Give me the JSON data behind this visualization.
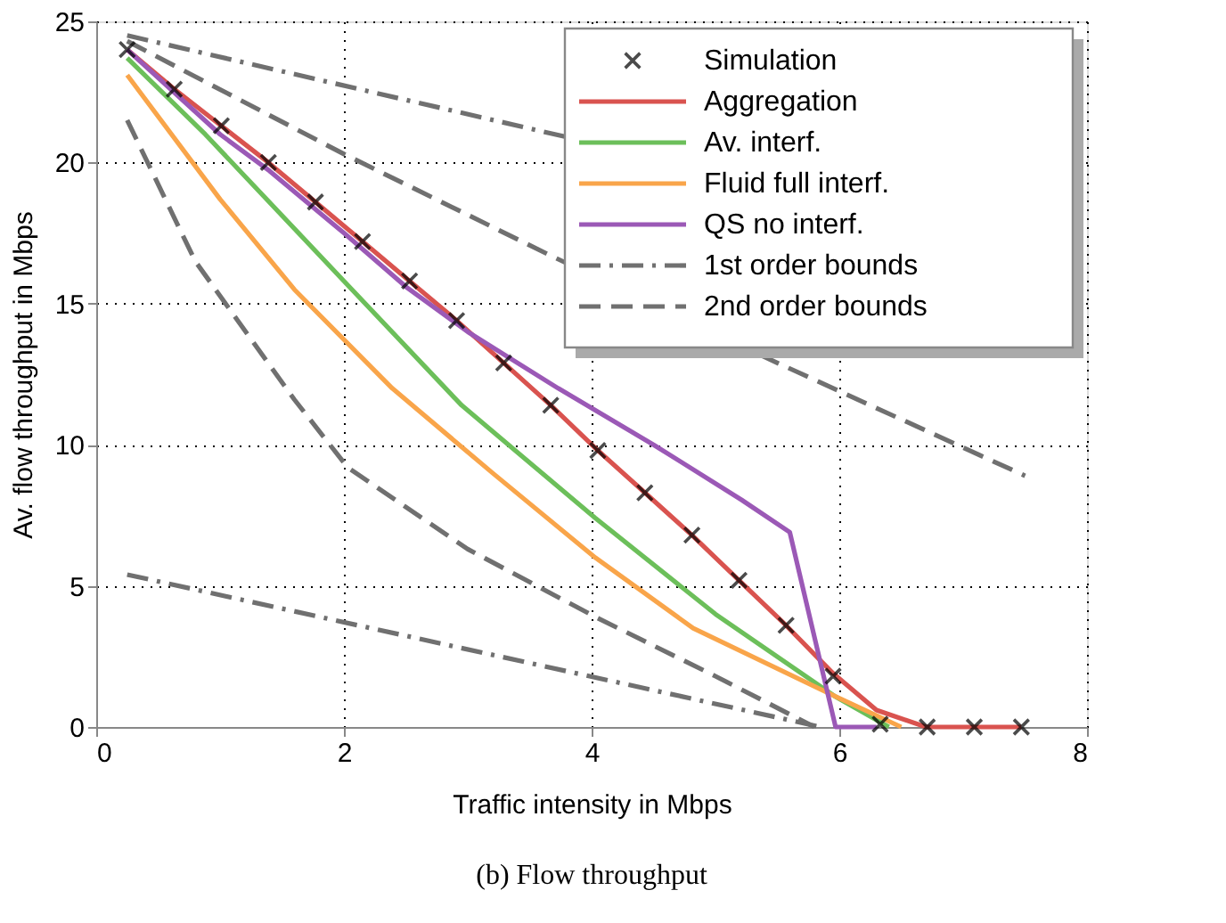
{
  "chart_data": {
    "type": "line",
    "xlabel": "Traffic intensity in Mbps",
    "ylabel": "Av. flow throughput in Mbps",
    "annotations": [
      "(b) Flow throughput"
    ],
    "xlim": [
      0,
      8
    ],
    "ylim": [
      0,
      25
    ],
    "xticks": [
      0,
      2,
      4,
      6,
      8
    ],
    "yticks": [
      0,
      5,
      10,
      15,
      20,
      25
    ],
    "grid": true,
    "legend": "top right",
    "series": [
      {
        "name": "Simulation",
        "type": "scatter",
        "marker": "cross",
        "color": "#000000",
        "x": [
          0.25,
          0.63,
          1.01,
          1.39,
          1.77,
          2.15,
          2.53,
          2.91,
          3.29,
          3.67,
          4.05,
          4.43,
          4.81,
          5.19,
          5.57,
          5.95,
          6.33,
          6.71,
          7.09,
          7.47
        ],
        "values": [
          24,
          22.6,
          21.3,
          20,
          18.6,
          17.2,
          15.8,
          14.4,
          12.9,
          11.4,
          9.8,
          8.3,
          6.8,
          5.2,
          3.6,
          1.8,
          0.1,
          0,
          0,
          0
        ]
      },
      {
        "name": "Aggregation",
        "line_style": "solid",
        "color": "#d9534f",
        "x": [
          0.25,
          0.63,
          1.01,
          1.39,
          1.77,
          2.15,
          2.53,
          2.91,
          3.29,
          3.67,
          4.05,
          4.43,
          4.81,
          5.19,
          5.57,
          5.95,
          6.3,
          6.7,
          7.47
        ],
        "values": [
          24,
          22.6,
          21.3,
          20,
          18.6,
          17.2,
          15.8,
          14.4,
          12.9,
          11.4,
          9.8,
          8.3,
          6.8,
          5.2,
          3.6,
          1.9,
          0.6,
          0,
          0
        ]
      },
      {
        "name": "Av. interf.",
        "line_style": "solid",
        "color": "#6cbf5a",
        "x": [
          0.25,
          0.88,
          2,
          2.95,
          4.03,
          5,
          5.96,
          6.4
        ],
        "values": [
          23.7,
          21,
          15.8,
          11.4,
          7.4,
          4,
          1.1,
          0
        ]
      },
      {
        "name": "Fluid full interf.",
        "line_style": "solid",
        "color": "#f9a54a",
        "x": [
          0.25,
          1,
          1.6,
          2.39,
          3.2,
          4.03,
          4.82,
          5.96,
          6.5
        ],
        "values": [
          23.1,
          18.7,
          15.5,
          12,
          9,
          6,
          3.5,
          1.1,
          0
        ]
      },
      {
        "name": "QS no interf.",
        "line_style": "solid",
        "color": "#9b59b6",
        "x": [
          0.25,
          1,
          1.4,
          2,
          2.5,
          3,
          3.73,
          4.5,
          5.21,
          5.6,
          5.97,
          6.3
        ],
        "values": [
          24,
          21,
          19.7,
          17.5,
          15.6,
          14,
          12,
          10,
          8.05,
          6.9,
          0,
          0
        ]
      },
      {
        "name": "1st order bounds",
        "line_style": "dashdot",
        "color": "#707070",
        "x": [
          0.25,
          3.8
        ],
        "values": [
          24.5,
          20.9
        ]
      },
      {
        "line_style": "dashdot",
        "color": "#707070",
        "x": [
          0.25,
          5.85
        ],
        "values": [
          5.4,
          0
        ]
      },
      {
        "name": "2nd order bounds",
        "line_style": "dashed",
        "color": "#707070",
        "x": [
          0.25,
          2,
          3.67,
          5.5,
          7.5
        ],
        "values": [
          24.3,
          20.3,
          16.7,
          12.9,
          8.9
        ]
      },
      {
        "line_style": "dashed",
        "color": "#707070",
        "x": [
          0.25,
          0.8,
          1.6,
          2.03,
          3,
          4.03,
          5,
          5.8
        ],
        "values": [
          21.5,
          16.5,
          11.6,
          9.2,
          6.3,
          3.9,
          1.8,
          0
        ]
      }
    ]
  }
}
